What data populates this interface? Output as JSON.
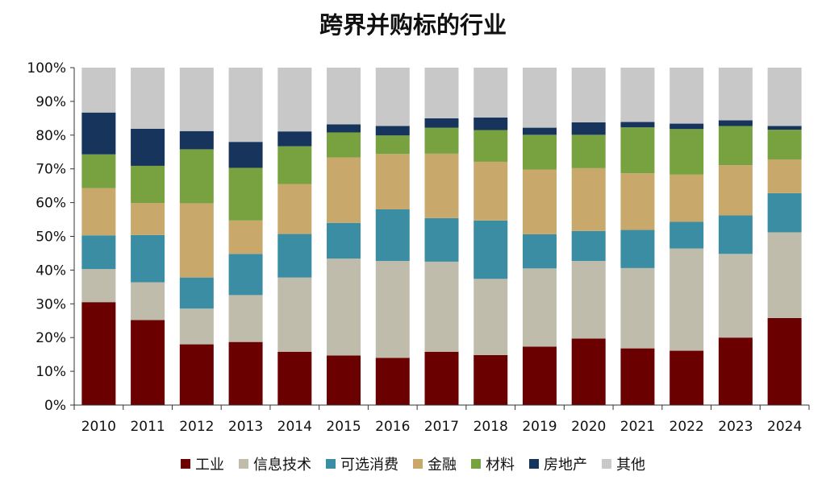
{
  "chart_data": {
    "type": "bar",
    "stacked": true,
    "title": "跨界并购标的行业",
    "categories": [
      "2010",
      "2011",
      "2012",
      "2013",
      "2014",
      "2015",
      "2016",
      "2017",
      "2018",
      "2019",
      "2020",
      "2021",
      "2022",
      "2023",
      "2024"
    ],
    "y_ticks": [
      "0%",
      "10%",
      "20%",
      "30%",
      "40%",
      "50%",
      "60%",
      "70%",
      "80%",
      "90%",
      "100%"
    ],
    "ylim": [
      0,
      100
    ],
    "grid": false,
    "legend_position": "bottom",
    "series": [
      {
        "name": "工业",
        "color": "#6b0000",
        "values": [
          30.5,
          25.2,
          18.0,
          18.7,
          15.8,
          14.7,
          14.0,
          15.8,
          14.8,
          17.3,
          19.7,
          16.8,
          16.1,
          20.0,
          25.8
        ]
      },
      {
        "name": "信息技术",
        "color": "#bfbcab",
        "values": [
          9.8,
          11.2,
          10.6,
          13.9,
          22.0,
          28.7,
          28.7,
          26.7,
          22.6,
          23.2,
          23.0,
          23.8,
          30.3,
          24.8,
          25.4
        ]
      },
      {
        "name": "可选消费",
        "color": "#3a8da3",
        "values": [
          10.0,
          14.0,
          9.2,
          12.2,
          12.9,
          10.6,
          15.3,
          12.9,
          17.3,
          10.1,
          8.9,
          11.3,
          7.9,
          11.4,
          11.6
        ]
      },
      {
        "name": "金融",
        "color": "#c9a96b",
        "values": [
          14.0,
          9.5,
          22.0,
          9.9,
          14.8,
          19.4,
          16.4,
          19.1,
          17.4,
          19.2,
          18.6,
          16.8,
          14.0,
          14.9,
          10.0
        ]
      },
      {
        "name": "材料",
        "color": "#77a23f",
        "values": [
          10.0,
          11.0,
          16.0,
          15.6,
          11.2,
          7.4,
          5.5,
          7.7,
          9.4,
          10.3,
          9.9,
          13.6,
          13.5,
          11.6,
          8.8
        ]
      },
      {
        "name": "房地产",
        "color": "#17345c",
        "values": [
          12.4,
          11.0,
          5.4,
          7.7,
          4.4,
          2.4,
          2.8,
          2.8,
          3.7,
          2.1,
          3.7,
          1.6,
          1.6,
          1.7,
          1.1
        ]
      },
      {
        "name": "其他",
        "color": "#c8c8c8",
        "values": [
          13.3,
          18.1,
          18.8,
          22.0,
          18.9,
          16.8,
          17.3,
          15.0,
          14.8,
          17.8,
          16.2,
          16.1,
          16.6,
          15.6,
          17.3
        ]
      }
    ]
  }
}
